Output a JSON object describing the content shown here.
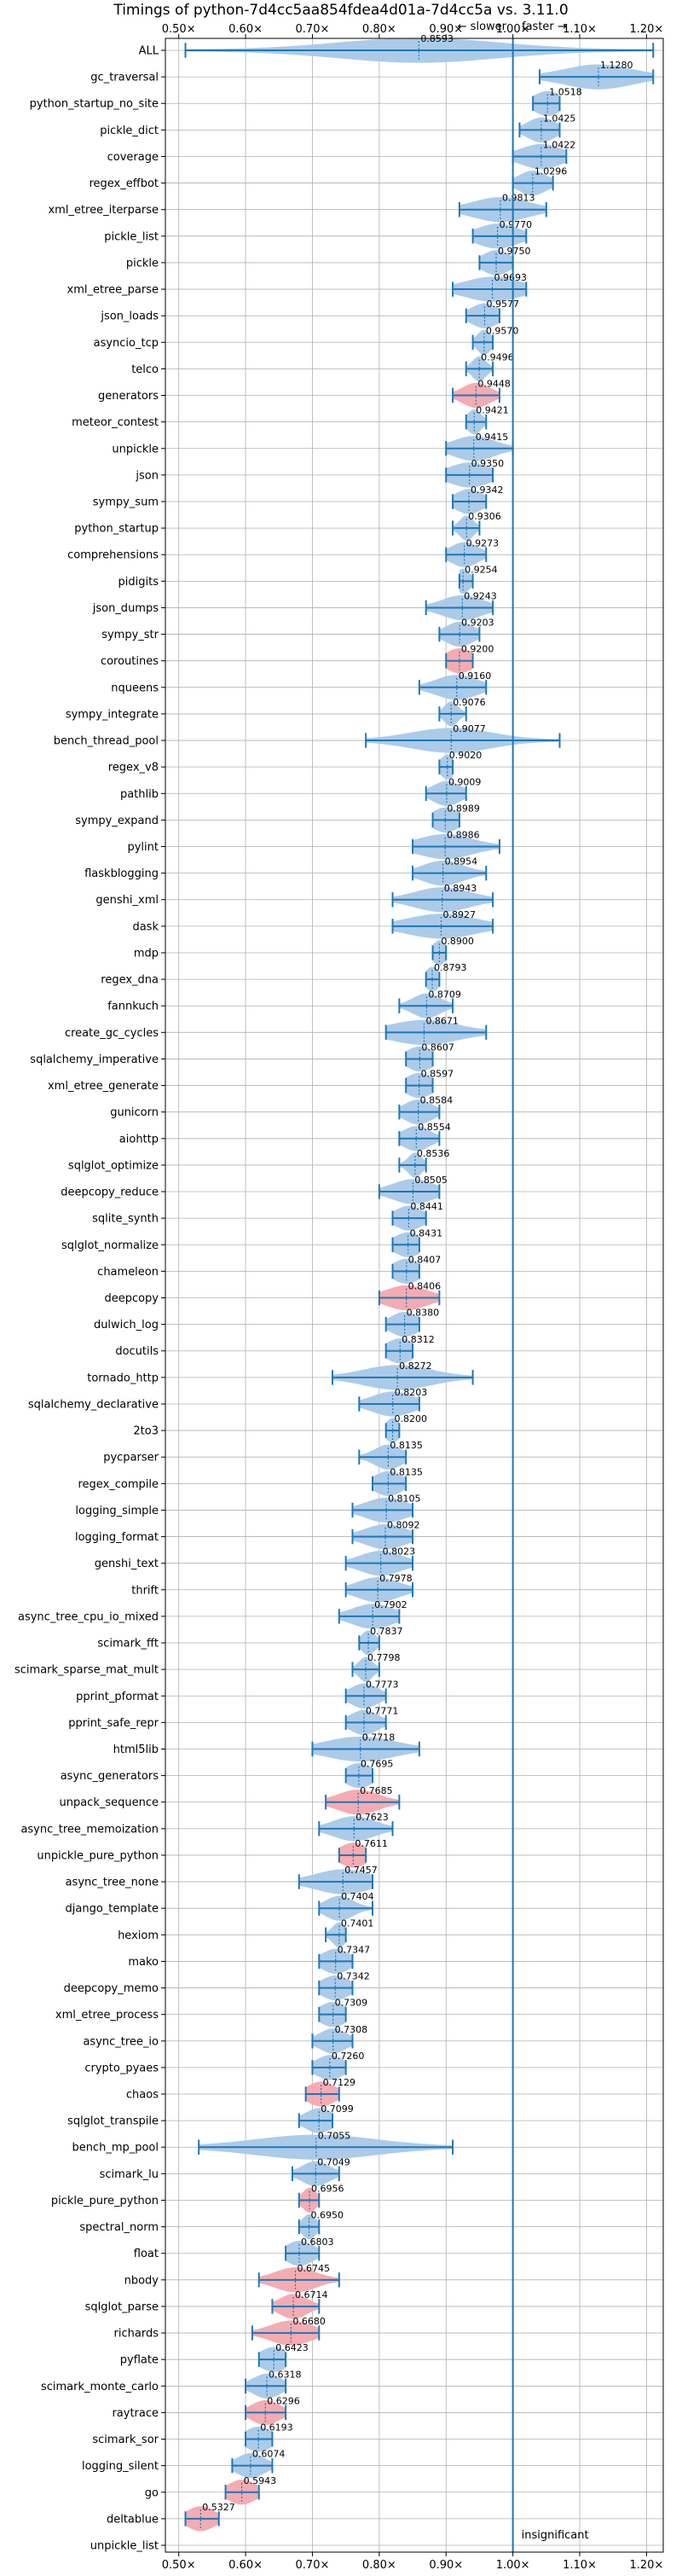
{
  "chart_data": {
    "type": "violin",
    "title": "Timings of python-7d4cc5aa854fdea4d01a-7d4cc5a vs. 3.11.0",
    "subtitle_slower": "← slower",
    "subtitle_faster": "faster →",
    "reference_line_x": 1.0,
    "reference_label": "insignificant",
    "xlim": [
      0.48,
      1.225
    ],
    "x_ticks": [
      0.5,
      0.6,
      0.7,
      0.8,
      0.9,
      1.0,
      1.1,
      1.2
    ],
    "x_tick_labels": [
      "0.50×",
      "0.60×",
      "0.70×",
      "0.80×",
      "0.90×",
      "1.00×",
      "1.10×",
      "1.20×"
    ],
    "colors": {
      "normal": "#a8c8e8",
      "highlight": "#f4a6ae",
      "line": "#1f77b4",
      "grid": "#b0b0b0"
    },
    "benchmarks": [
      {
        "name": "ALL",
        "value": 0.8593,
        "min": 0.51,
        "max": 1.21,
        "spread": 0.12
      },
      {
        "name": "gc_traversal",
        "value": 1.128,
        "min": 1.04,
        "max": 1.21,
        "spread": 0.05
      },
      {
        "name": "python_startup_no_site",
        "value": 1.0518,
        "min": 1.03,
        "max": 1.07,
        "spread": 0.02
      },
      {
        "name": "pickle_dict",
        "value": 1.0425,
        "min": 1.01,
        "max": 1.07,
        "spread": 0.02
      },
      {
        "name": "coverage",
        "value": 1.0422,
        "min": 1.0,
        "max": 1.08,
        "spread": 0.03
      },
      {
        "name": "regex_effbot",
        "value": 1.0296,
        "min": 1.0,
        "max": 1.06,
        "spread": 0.02
      },
      {
        "name": "xml_etree_iterparse",
        "value": 0.9813,
        "min": 0.92,
        "max": 1.05,
        "spread": 0.04
      },
      {
        "name": "pickle_list",
        "value": 0.977,
        "min": 0.94,
        "max": 1.02,
        "spread": 0.03
      },
      {
        "name": "pickle",
        "value": 0.975,
        "min": 0.95,
        "max": 1.0,
        "spread": 0.02
      },
      {
        "name": "xml_etree_parse",
        "value": 0.9693,
        "min": 0.91,
        "max": 1.02,
        "spread": 0.04
      },
      {
        "name": "json_loads",
        "value": 0.9577,
        "min": 0.93,
        "max": 0.98,
        "spread": 0.02
      },
      {
        "name": "asyncio_tcp",
        "value": 0.957,
        "min": 0.94,
        "max": 0.97,
        "spread": 0.01
      },
      {
        "name": "telco",
        "value": 0.9496,
        "min": 0.93,
        "max": 0.97,
        "spread": 0.01
      },
      {
        "name": "generators",
        "value": 0.9448,
        "min": 0.91,
        "max": 0.98,
        "spread": 0.02,
        "highlight": true
      },
      {
        "name": "meteor_contest",
        "value": 0.9421,
        "min": 0.93,
        "max": 0.96,
        "spread": 0.01
      },
      {
        "name": "unpickle",
        "value": 0.9415,
        "min": 0.9,
        "max": 1.0,
        "spread": 0.03
      },
      {
        "name": "json",
        "value": 0.935,
        "min": 0.9,
        "max": 0.97,
        "spread": 0.03
      },
      {
        "name": "sympy_sum",
        "value": 0.9342,
        "min": 0.91,
        "max": 0.96,
        "spread": 0.02
      },
      {
        "name": "python_startup",
        "value": 0.9306,
        "min": 0.91,
        "max": 0.95,
        "spread": 0.01
      },
      {
        "name": "comprehensions",
        "value": 0.9273,
        "min": 0.9,
        "max": 0.96,
        "spread": 0.02
      },
      {
        "name": "pidigits",
        "value": 0.9254,
        "min": 0.92,
        "max": 0.94,
        "spread": 0.01
      },
      {
        "name": "json_dumps",
        "value": 0.9243,
        "min": 0.87,
        "max": 0.97,
        "spread": 0.03
      },
      {
        "name": "sympy_str",
        "value": 0.9203,
        "min": 0.89,
        "max": 0.95,
        "spread": 0.02
      },
      {
        "name": "coroutines",
        "value": 0.92,
        "min": 0.9,
        "max": 0.94,
        "spread": 0.02,
        "highlight": true
      },
      {
        "name": "nqueens",
        "value": 0.916,
        "min": 0.86,
        "max": 0.96,
        "spread": 0.03
      },
      {
        "name": "sympy_integrate",
        "value": 0.9076,
        "min": 0.89,
        "max": 0.93,
        "spread": 0.01
      },
      {
        "name": "bench_thread_pool",
        "value": 0.9077,
        "min": 0.78,
        "max": 1.07,
        "spread": 0.06
      },
      {
        "name": "regex_v8",
        "value": 0.902,
        "min": 0.89,
        "max": 0.91,
        "spread": 0.01
      },
      {
        "name": "pathlib",
        "value": 0.9009,
        "min": 0.87,
        "max": 0.93,
        "spread": 0.02
      },
      {
        "name": "sympy_expand",
        "value": 0.8989,
        "min": 0.88,
        "max": 0.92,
        "spread": 0.02
      },
      {
        "name": "pylint",
        "value": 0.8986,
        "min": 0.85,
        "max": 0.98,
        "spread": 0.04
      },
      {
        "name": "flaskblogging",
        "value": 0.8954,
        "min": 0.85,
        "max": 0.96,
        "spread": 0.03
      },
      {
        "name": "genshi_xml",
        "value": 0.8943,
        "min": 0.82,
        "max": 0.97,
        "spread": 0.04
      },
      {
        "name": "dask",
        "value": 0.8927,
        "min": 0.82,
        "max": 0.97,
        "spread": 0.05
      },
      {
        "name": "mdp",
        "value": 0.89,
        "min": 0.88,
        "max": 0.9,
        "spread": 0.01
      },
      {
        "name": "regex_dna",
        "value": 0.8793,
        "min": 0.87,
        "max": 0.89,
        "spread": 0.01
      },
      {
        "name": "fannkuch",
        "value": 0.8709,
        "min": 0.83,
        "max": 0.91,
        "spread": 0.02
      },
      {
        "name": "create_gc_cycles",
        "value": 0.8671,
        "min": 0.81,
        "max": 0.96,
        "spread": 0.05
      },
      {
        "name": "sqlalchemy_imperative",
        "value": 0.8607,
        "min": 0.84,
        "max": 0.88,
        "spread": 0.02
      },
      {
        "name": "xml_etree_generate",
        "value": 0.8597,
        "min": 0.84,
        "max": 0.88,
        "spread": 0.02
      },
      {
        "name": "gunicorn",
        "value": 0.8584,
        "min": 0.83,
        "max": 0.89,
        "spread": 0.02
      },
      {
        "name": "aiohttp",
        "value": 0.8554,
        "min": 0.83,
        "max": 0.89,
        "spread": 0.02
      },
      {
        "name": "sqlglot_optimize",
        "value": 0.8536,
        "min": 0.83,
        "max": 0.87,
        "spread": 0.01
      },
      {
        "name": "deepcopy_reduce",
        "value": 0.8505,
        "min": 0.8,
        "max": 0.89,
        "spread": 0.03
      },
      {
        "name": "sqlite_synth",
        "value": 0.8441,
        "min": 0.82,
        "max": 0.87,
        "spread": 0.02
      },
      {
        "name": "sqlglot_normalize",
        "value": 0.8431,
        "min": 0.82,
        "max": 0.86,
        "spread": 0.02
      },
      {
        "name": "chameleon",
        "value": 0.8407,
        "min": 0.82,
        "max": 0.86,
        "spread": 0.02
      },
      {
        "name": "deepcopy",
        "value": 0.8406,
        "min": 0.8,
        "max": 0.89,
        "spread": 0.03,
        "highlight": true
      },
      {
        "name": "dulwich_log",
        "value": 0.838,
        "min": 0.81,
        "max": 0.86,
        "spread": 0.02
      },
      {
        "name": "docutils",
        "value": 0.8312,
        "min": 0.81,
        "max": 0.85,
        "spread": 0.02
      },
      {
        "name": "tornado_http",
        "value": 0.8272,
        "min": 0.73,
        "max": 0.94,
        "spread": 0.05
      },
      {
        "name": "sqlalchemy_declarative",
        "value": 0.8203,
        "min": 0.77,
        "max": 0.86,
        "spread": 0.03
      },
      {
        "name": "2to3",
        "value": 0.82,
        "min": 0.81,
        "max": 0.83,
        "spread": 0.01
      },
      {
        "name": "pycparser",
        "value": 0.8135,
        "min": 0.77,
        "max": 0.84,
        "spread": 0.02
      },
      {
        "name": "regex_compile",
        "value": 0.8135,
        "min": 0.79,
        "max": 0.84,
        "spread": 0.02
      },
      {
        "name": "logging_simple",
        "value": 0.8105,
        "min": 0.76,
        "max": 0.85,
        "spread": 0.03
      },
      {
        "name": "logging_format",
        "value": 0.8092,
        "min": 0.76,
        "max": 0.85,
        "spread": 0.03
      },
      {
        "name": "genshi_text",
        "value": 0.8023,
        "min": 0.75,
        "max": 0.85,
        "spread": 0.03
      },
      {
        "name": "thrift",
        "value": 0.7978,
        "min": 0.75,
        "max": 0.85,
        "spread": 0.03
      },
      {
        "name": "async_tree_cpu_io_mixed",
        "value": 0.7902,
        "min": 0.74,
        "max": 0.83,
        "spread": 0.03
      },
      {
        "name": "scimark_fft",
        "value": 0.7837,
        "min": 0.77,
        "max": 0.8,
        "spread": 0.01
      },
      {
        "name": "scimark_sparse_mat_mult",
        "value": 0.7798,
        "min": 0.76,
        "max": 0.8,
        "spread": 0.01
      },
      {
        "name": "pprint_pformat",
        "value": 0.7773,
        "min": 0.75,
        "max": 0.81,
        "spread": 0.02
      },
      {
        "name": "pprint_safe_repr",
        "value": 0.7771,
        "min": 0.75,
        "max": 0.81,
        "spread": 0.02
      },
      {
        "name": "html5lib",
        "value": 0.7718,
        "min": 0.7,
        "max": 0.86,
        "spread": 0.05
      },
      {
        "name": "async_generators",
        "value": 0.7695,
        "min": 0.75,
        "max": 0.79,
        "spread": 0.02
      },
      {
        "name": "unpack_sequence",
        "value": 0.7685,
        "min": 0.72,
        "max": 0.83,
        "spread": 0.03,
        "highlight": true
      },
      {
        "name": "async_tree_memoization",
        "value": 0.7623,
        "min": 0.71,
        "max": 0.82,
        "spread": 0.03
      },
      {
        "name": "unpickle_pure_python",
        "value": 0.7611,
        "min": 0.74,
        "max": 0.78,
        "spread": 0.02,
        "highlight": true
      },
      {
        "name": "async_tree_none",
        "value": 0.7457,
        "min": 0.68,
        "max": 0.79,
        "spread": 0.04
      },
      {
        "name": "django_template",
        "value": 0.7404,
        "min": 0.71,
        "max": 0.79,
        "spread": 0.02
      },
      {
        "name": "hexiom",
        "value": 0.7401,
        "min": 0.72,
        "max": 0.75,
        "spread": 0.01
      },
      {
        "name": "mako",
        "value": 0.7347,
        "min": 0.71,
        "max": 0.76,
        "spread": 0.02
      },
      {
        "name": "deepcopy_memo",
        "value": 0.7342,
        "min": 0.71,
        "max": 0.76,
        "spread": 0.02
      },
      {
        "name": "xml_etree_process",
        "value": 0.7309,
        "min": 0.71,
        "max": 0.75,
        "spread": 0.02
      },
      {
        "name": "async_tree_io",
        "value": 0.7308,
        "min": 0.7,
        "max": 0.76,
        "spread": 0.02
      },
      {
        "name": "crypto_pyaes",
        "value": 0.726,
        "min": 0.7,
        "max": 0.75,
        "spread": 0.02
      },
      {
        "name": "chaos",
        "value": 0.7129,
        "min": 0.69,
        "max": 0.74,
        "spread": 0.02,
        "highlight": true
      },
      {
        "name": "sqlglot_transpile",
        "value": 0.7099,
        "min": 0.68,
        "max": 0.73,
        "spread": 0.02
      },
      {
        "name": "bench_mp_pool",
        "value": 0.7055,
        "min": 0.53,
        "max": 0.91,
        "spread": 0.09
      },
      {
        "name": "scimark_lu",
        "value": 0.7049,
        "min": 0.67,
        "max": 0.74,
        "spread": 0.02
      },
      {
        "name": "pickle_pure_python",
        "value": 0.6956,
        "min": 0.68,
        "max": 0.71,
        "spread": 0.01,
        "highlight": true
      },
      {
        "name": "spectral_norm",
        "value": 0.695,
        "min": 0.68,
        "max": 0.71,
        "spread": 0.01
      },
      {
        "name": "float",
        "value": 0.6803,
        "min": 0.66,
        "max": 0.71,
        "spread": 0.02
      },
      {
        "name": "nbody",
        "value": 0.6745,
        "min": 0.62,
        "max": 0.74,
        "spread": 0.03,
        "highlight": true
      },
      {
        "name": "sqlglot_parse",
        "value": 0.6714,
        "min": 0.64,
        "max": 0.71,
        "spread": 0.02,
        "highlight": true
      },
      {
        "name": "richards",
        "value": 0.668,
        "min": 0.61,
        "max": 0.71,
        "spread": 0.03,
        "highlight": true
      },
      {
        "name": "pyflate",
        "value": 0.6423,
        "min": 0.62,
        "max": 0.66,
        "spread": 0.02
      },
      {
        "name": "scimark_monte_carlo",
        "value": 0.6318,
        "min": 0.6,
        "max": 0.66,
        "spread": 0.02
      },
      {
        "name": "raytrace",
        "value": 0.6296,
        "min": 0.6,
        "max": 0.66,
        "spread": 0.02,
        "highlight": true
      },
      {
        "name": "scimark_sor",
        "value": 0.6193,
        "min": 0.6,
        "max": 0.64,
        "spread": 0.02
      },
      {
        "name": "logging_silent",
        "value": 0.6074,
        "min": 0.58,
        "max": 0.64,
        "spread": 0.02
      },
      {
        "name": "go",
        "value": 0.5943,
        "min": 0.57,
        "max": 0.62,
        "spread": 0.02,
        "highlight": true
      },
      {
        "name": "deltablue",
        "value": 0.5327,
        "min": 0.51,
        "max": 0.56,
        "spread": 0.02,
        "highlight": true
      },
      {
        "name": "unpickle_list",
        "value": null,
        "min": null,
        "max": null,
        "spread": 0
      }
    ]
  }
}
